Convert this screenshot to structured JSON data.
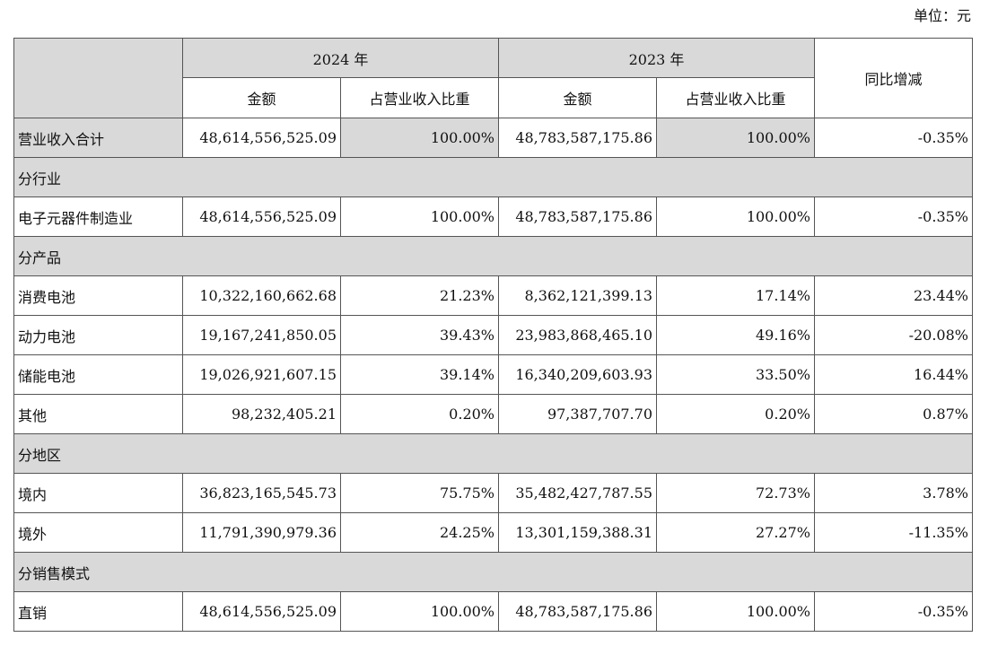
{
  "unit_label": "单位：元",
  "header": {
    "year_2024": "2024 年",
    "year_2023": "2023 年",
    "yoy": "同比增减",
    "amount": "金额",
    "ratio": "占营业收入比重"
  },
  "rows": [
    {
      "label": "营业收入合计",
      "amt2024": "48,614,556,525.09",
      "pct2024": "100.00%",
      "amt2023": "48,783,587,175.86",
      "pct2023": "100.00%",
      "yoy": "-0.35%"
    },
    {
      "group": "分行业"
    },
    {
      "label": "电子元器件制造业",
      "amt2024": "48,614,556,525.09",
      "pct2024": "100.00%",
      "amt2023": "48,783,587,175.86",
      "pct2023": "100.00%",
      "yoy": "-0.35%"
    },
    {
      "group": "分产品"
    },
    {
      "label": "消费电池",
      "amt2024": "10,322,160,662.68",
      "pct2024": "21.23%",
      "amt2023": "8,362,121,399.13",
      "pct2023": "17.14%",
      "yoy": "23.44%"
    },
    {
      "label": "动力电池",
      "amt2024": "19,167,241,850.05",
      "pct2024": "39.43%",
      "amt2023": "23,983,868,465.10",
      "pct2023": "49.16%",
      "yoy": "-20.08%"
    },
    {
      "label": "储能电池",
      "amt2024": "19,026,921,607.15",
      "pct2024": "39.14%",
      "amt2023": "16,340,209,603.93",
      "pct2023": "33.50%",
      "yoy": "16.44%"
    },
    {
      "label": "其他",
      "amt2024": "98,232,405.21",
      "pct2024": "0.20%",
      "amt2023": "97,387,707.70",
      "pct2023": "0.20%",
      "yoy": "0.87%"
    },
    {
      "group": "分地区"
    },
    {
      "label": "境内",
      "amt2024": "36,823,165,545.73",
      "pct2024": "75.75%",
      "amt2023": "35,482,427,787.55",
      "pct2023": "72.73%",
      "yoy": "3.78%"
    },
    {
      "label": "境外",
      "amt2024": "11,791,390,979.36",
      "pct2024": "24.25%",
      "amt2023": "13,301,159,388.31",
      "pct2023": "27.27%",
      "yoy": "-11.35%"
    },
    {
      "group": "分销售模式"
    },
    {
      "label": "直销",
      "amt2024": "48,614,556,525.09",
      "pct2024": "100.00%",
      "amt2023": "48,783,587,175.86",
      "pct2023": "100.00%",
      "yoy": "-0.35%"
    }
  ],
  "colors": {
    "shade": "#d9d9d9",
    "border": "#555555"
  }
}
